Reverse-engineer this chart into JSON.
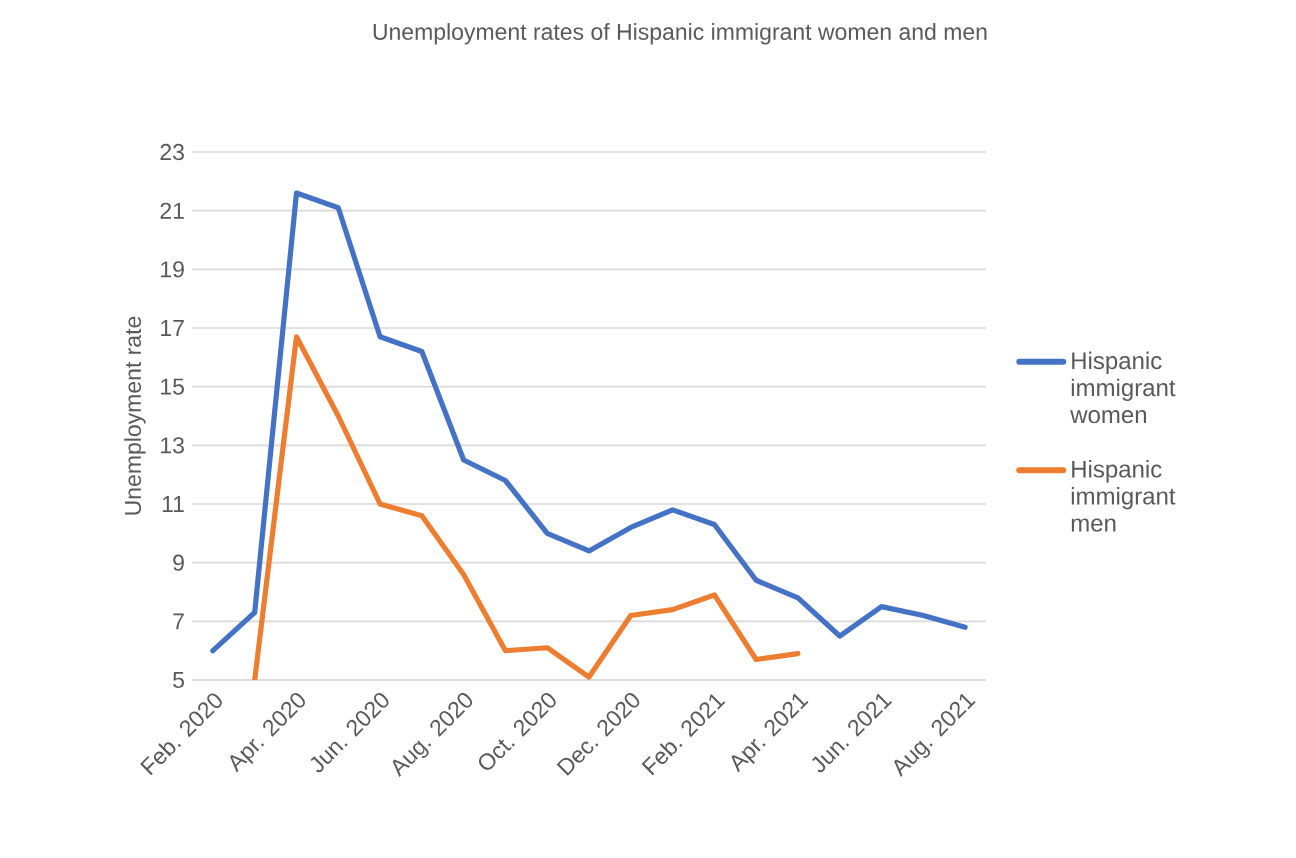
{
  "chart_data": {
    "type": "line",
    "title": "Unemployment rates of Hispanic immigrant women and men",
    "ylabel": "Unemployment rate",
    "categories": [
      "Feb. 2020",
      null,
      "Apr. 2020",
      null,
      "Jun. 2020",
      null,
      "Aug. 2020",
      null,
      "Oct. 2020",
      null,
      "Dec. 2020",
      null,
      "Feb. 2021",
      null,
      "Apr. 2021",
      null,
      "Jun. 2021",
      null,
      "Aug. 2021"
    ],
    "series": [
      {
        "name": "Hispanic immigrant women",
        "color": "#4472c4",
        "values": [
          6.0,
          7.3,
          21.6,
          21.1,
          16.7,
          16.2,
          12.5,
          11.8,
          10.0,
          9.4,
          10.2,
          10.8,
          10.3,
          8.4,
          7.8,
          6.5,
          7.5,
          7.2,
          6.8
        ]
      },
      {
        "name": "Hispanic immigrant men",
        "color": "#ed7d31",
        "values": [
          null,
          5.0,
          16.7,
          14.0,
          11.0,
          10.6,
          8.6,
          6.0,
          6.1,
          5.1,
          7.2,
          7.4,
          7.9,
          5.7,
          5.9,
          null,
          null,
          null,
          null
        ]
      }
    ],
    "ylim": [
      5,
      23
    ],
    "yticks": [
      5,
      7,
      9,
      11,
      13,
      15,
      17,
      19,
      21,
      23
    ],
    "grid": "y",
    "legend": "right",
    "marker": "none",
    "line_style": "solid"
  }
}
